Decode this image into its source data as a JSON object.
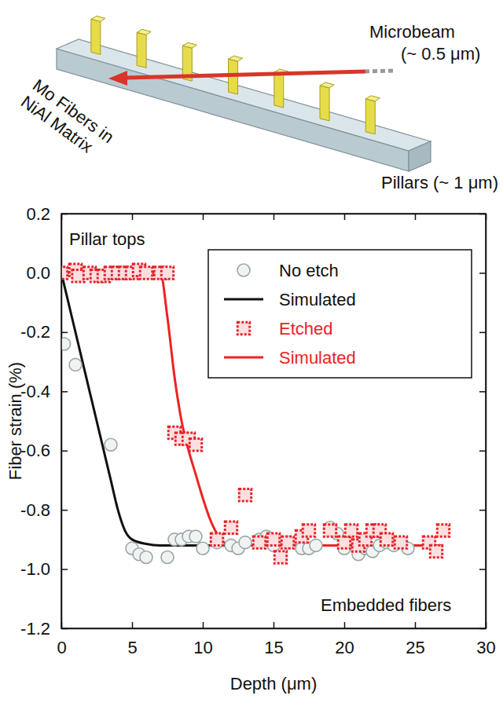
{
  "diagram": {
    "microbeam_label": [
      "Microbeam",
      "(~ 0.5 μm)"
    ],
    "matrix_label": [
      "Mo Fibers in",
      "NiAl Matrix"
    ],
    "pillars_label": "Pillars (~ 1 μm)"
  },
  "chart_data": {
    "type": "scatter",
    "x_label": "Depth (μm)",
    "y_label": "Fiber strain (%)",
    "xlim": [
      0,
      30
    ],
    "xticks": [
      0,
      5,
      10,
      15,
      20,
      25,
      30
    ],
    "ylim": [
      -1.2,
      0.2
    ],
    "yticks": [
      0.2,
      {
        "value": 0,
        "label": "0.0"
      },
      -0.2,
      -0.4,
      -0.6,
      -0.8,
      {
        "value": -1,
        "label": "-1.0"
      },
      -1.2
    ],
    "legend": "upper right",
    "annotations": [
      "Pillar tops",
      "Embedded fibers"
    ],
    "series": [
      {
        "name": "No etch",
        "type": "scatter",
        "marker": "circle",
        "color": "#9aa8a8",
        "x": [
          0,
          0.2,
          1,
          3.5,
          5,
          5.5,
          6,
          7.5,
          8,
          8.5,
          9,
          9.5,
          10,
          11,
          12,
          12.5,
          13,
          14,
          14.5,
          15,
          16,
          17,
          17.5,
          18,
          19,
          19.5,
          20,
          21,
          21.5,
          22,
          22.5,
          23,
          23.5,
          24.5
        ],
        "values": [
          0,
          -0.24,
          -0.31,
          -0.58,
          -0.93,
          -0.95,
          -0.96,
          -0.96,
          -0.9,
          -0.9,
          -0.89,
          -0.89,
          -0.93,
          -0.91,
          -0.92,
          -0.93,
          -0.91,
          -0.9,
          -0.89,
          -0.92,
          -0.91,
          -0.93,
          -0.93,
          -0.92,
          -0.86,
          -0.88,
          -0.93,
          -0.95,
          -0.93,
          -0.94,
          -0.92,
          -0.91,
          -0.92,
          -0.93
        ]
      },
      {
        "name": "Simulated",
        "type": "line",
        "line_style": "solid",
        "color": "#111111",
        "x": [
          0,
          0.5,
          1,
          1.5,
          2,
          2.5,
          3,
          3.5,
          4,
          4.5,
          5,
          6,
          7,
          12
        ],
        "values": [
          0,
          -0.1,
          -0.2,
          -0.3,
          -0.4,
          -0.5,
          -0.6,
          -0.7,
          -0.8,
          -0.87,
          -0.9,
          -0.915,
          -0.92,
          -0.92
        ]
      },
      {
        "name": "Etched",
        "type": "scatter",
        "marker": "square",
        "color": "#e8222a",
        "x": [
          0,
          1,
          1.2,
          2,
          2.5,
          3,
          3.5,
          4,
          4.5,
          5,
          5.5,
          6,
          7,
          7.5,
          8,
          8.5,
          9,
          9.5,
          11,
          12,
          13,
          14,
          15,
          15.5,
          16,
          17,
          17.5,
          19,
          20,
          20.5,
          21,
          21.5,
          22,
          22.5,
          23,
          24,
          26,
          26.5,
          27
        ],
        "values": [
          0,
          0.01,
          -0.01,
          0,
          -0.01,
          -0.01,
          0,
          0,
          0,
          0,
          0.01,
          0,
          0,
          0,
          -0.54,
          -0.56,
          -0.56,
          -0.58,
          -0.9,
          -0.86,
          -0.75,
          -0.91,
          -0.9,
          -0.96,
          -0.91,
          -0.89,
          -0.87,
          -0.87,
          -0.91,
          -0.87,
          -0.92,
          -0.9,
          -0.87,
          -0.87,
          -0.9,
          -0.91,
          -0.91,
          -0.94,
          -0.87
        ]
      },
      {
        "name": "Simulated",
        "type": "line",
        "line_style": "solid",
        "color": "#ee2222",
        "x": [
          0,
          7,
          7.5,
          8,
          8.5,
          9,
          9.5,
          10,
          10.5,
          11,
          11.5,
          12,
          27
        ],
        "values": [
          0,
          0,
          -0.15,
          -0.35,
          -0.5,
          -0.6,
          -0.68,
          -0.76,
          -0.83,
          -0.88,
          -0.91,
          -0.92,
          -0.92
        ]
      }
    ]
  }
}
